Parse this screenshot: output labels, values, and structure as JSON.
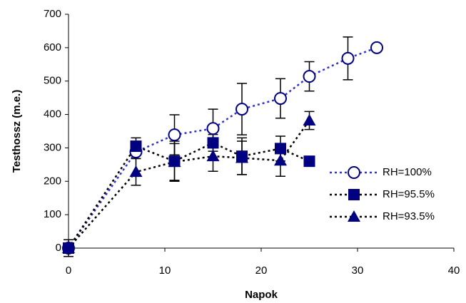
{
  "chart_data": {
    "type": "line",
    "x_label": "Napok",
    "y_label": "Testhossz (m.e.)",
    "xlim": [
      0,
      40
    ],
    "xticks": [
      0,
      10,
      20,
      30,
      40
    ],
    "ylim": [
      0,
      700
    ],
    "yticks": [
      0,
      100,
      200,
      300,
      400,
      500,
      600,
      700
    ],
    "grid": false,
    "legend": "right",
    "series": [
      {
        "name": "RH=100%",
        "color": "#000080",
        "line_color": "#3333cc",
        "marker": "circle-open",
        "x": [
          0,
          7,
          11,
          15,
          18,
          22,
          25,
          29,
          32
        ],
        "values": [
          0,
          288,
          339,
          358,
          416,
          448,
          514,
          568,
          600
        ],
        "errors": [
          25,
          20,
          60,
          58,
          77,
          59,
          44,
          64,
          null
        ]
      },
      {
        "name": "RH=95.5%",
        "color": "#000080",
        "line_color": "#000000",
        "marker": "square",
        "x": [
          0,
          7,
          11,
          15,
          18,
          22,
          25
        ],
        "values": [
          0,
          305,
          260,
          315,
          275,
          298,
          260
        ],
        "errors": [
          null,
          25,
          60,
          25,
          55,
          37,
          null
        ]
      },
      {
        "name": "RH=93.5%",
        "color": "#000080",
        "line_color": "#000000",
        "marker": "triangle",
        "x": [
          0,
          7,
          11,
          15,
          18,
          22,
          25
        ],
        "values": [
          0,
          228,
          258,
          275,
          270,
          262,
          382
        ],
        "errors": [
          null,
          40,
          55,
          45,
          50,
          47,
          27
        ]
      }
    ]
  }
}
